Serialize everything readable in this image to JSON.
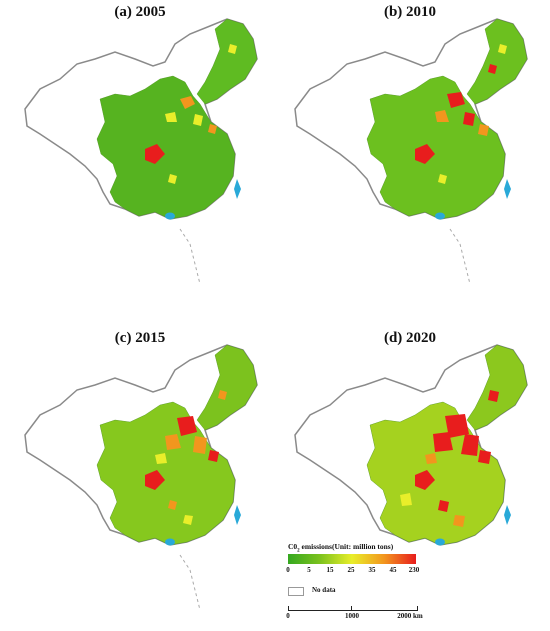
{
  "panels": [
    {
      "title": "(a) 2005",
      "year": 2005
    },
    {
      "title": "(b) 2010",
      "year": 2010
    },
    {
      "title": "(c) 2015",
      "year": 2015
    },
    {
      "title": "(d) 2020",
      "year": 2020
    }
  ],
  "legend": {
    "title_prefix": "C0",
    "title_sub": "2",
    "title_suffix": " emissions(Unit: million tons)",
    "ticks": [
      "0",
      "5",
      "15",
      "25",
      "35",
      "45",
      "230"
    ],
    "no_data": "No data",
    "scale_labels": [
      "0",
      "1000",
      "2000 km"
    ]
  },
  "colors": {
    "low": "#35a820",
    "mid_low": "#7cc21e",
    "mid": "#e9ee2a",
    "mid_high": "#f2961e",
    "high": "#e81d1d",
    "water": "#29a9d8",
    "border": "#8a8a8a"
  }
}
